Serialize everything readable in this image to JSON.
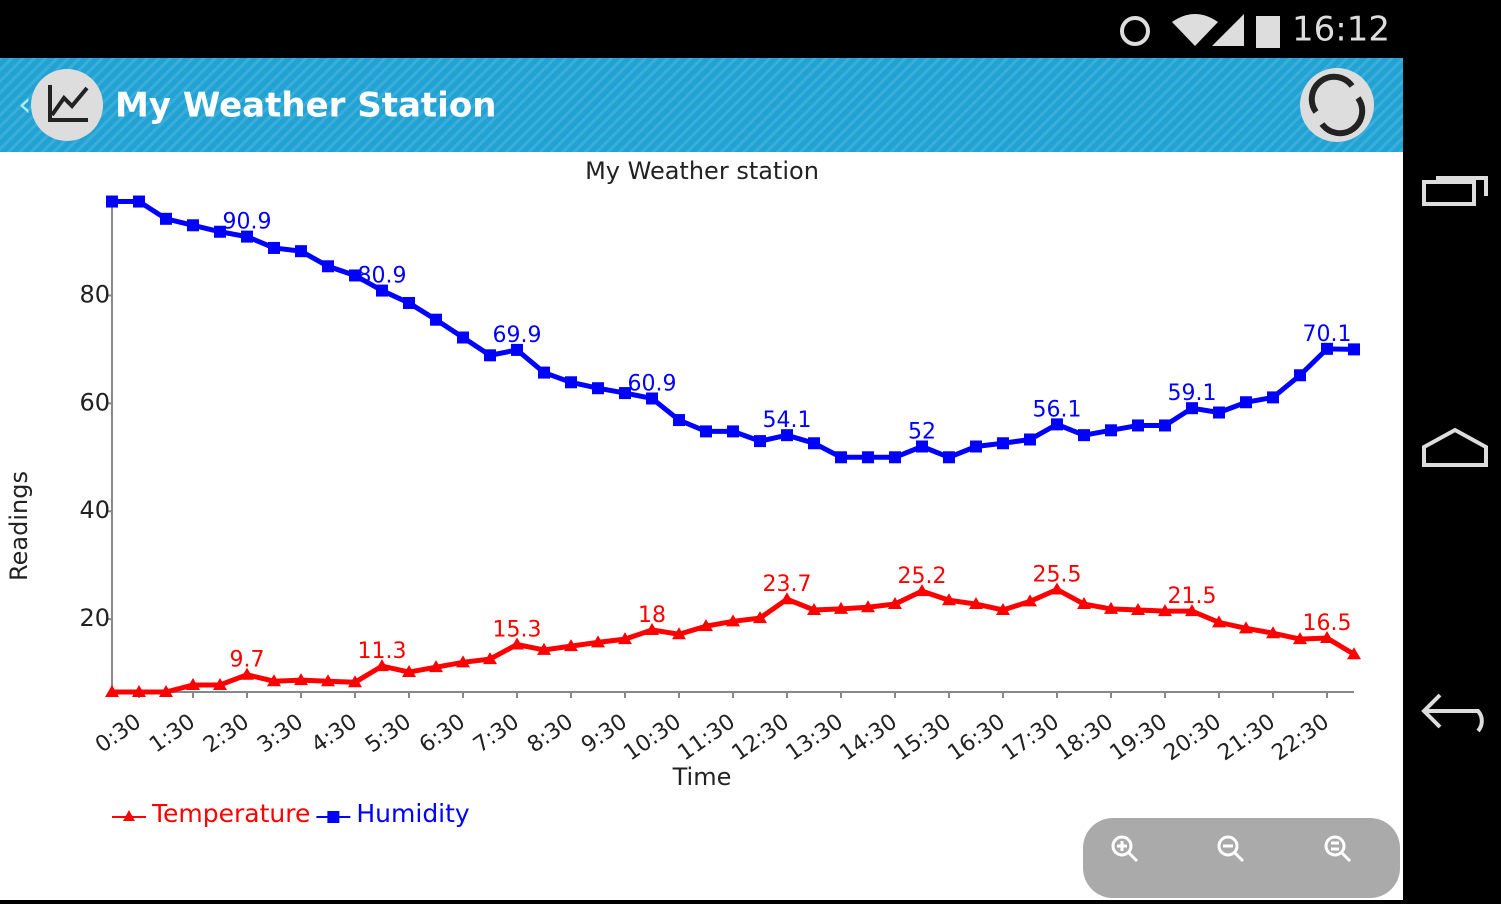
{
  "status_bar": {
    "time": "16:12"
  },
  "app_bar": {
    "title": "My Weather Station"
  },
  "chart_data": {
    "type": "line",
    "title": "My Weather station",
    "x_label": "Time",
    "y_label": "Readings",
    "categories": [
      null,
      "0:30",
      null,
      "1:30",
      null,
      "2:30",
      null,
      "3:30",
      null,
      "4:30",
      null,
      "5:30",
      null,
      "6:30",
      null,
      "7:30",
      null,
      "8:30",
      null,
      "9:30",
      null,
      "10:30",
      null,
      "11:30",
      null,
      "12:30",
      null,
      "13:30",
      null,
      "14:30",
      null,
      "15:30",
      null,
      "16:30",
      null,
      "17:30",
      null,
      "18:30",
      null,
      "19:30",
      null,
      "20:30",
      null,
      "21:30",
      null,
      "22:30",
      null
    ],
    "series": [
      {
        "name": "Temperature",
        "color": "#ff0000",
        "marker": "triangle",
        "values": [
          6.5,
          6.5,
          6.5,
          7.8,
          7.8,
          9.7,
          8.5,
          8.7,
          8.5,
          8.3,
          11.3,
          10.2,
          11.1,
          12,
          12.6,
          15.3,
          14.3,
          15,
          15.7,
          16.3,
          18,
          17.2,
          18.7,
          19.6,
          20.2,
          23.7,
          21.7,
          21.9,
          22.2,
          22.8,
          25.2,
          23.5,
          22.8,
          21.7,
          23.3,
          25.5,
          22.8,
          21.9,
          21.7,
          21.5,
          21.5,
          19.4,
          18.3,
          17.4,
          16.3,
          16.5,
          13.5
        ]
      },
      {
        "name": "Humidity",
        "color": "#0000ff",
        "marker": "square",
        "values": [
          97.4,
          97.4,
          94.2,
          93,
          91.8,
          90.9,
          88.8,
          88.2,
          85.4,
          83.7,
          80.9,
          78.6,
          75.5,
          72.2,
          68.9,
          69.9,
          65.7,
          63.9,
          62.8,
          61.9,
          60.9,
          56.9,
          54.8,
          54.8,
          53,
          54.1,
          52.6,
          50,
          50,
          50,
          52,
          50,
          52,
          52.6,
          53.3,
          56.1,
          54.1,
          55,
          55.9,
          55.9,
          59.1,
          58.3,
          60.2,
          61.1,
          65.2,
          70.1,
          70
        ]
      }
    ],
    "ylim": [
      6.5,
      97.5
    ],
    "yticks": [
      20,
      40,
      60,
      80
    ]
  }
}
